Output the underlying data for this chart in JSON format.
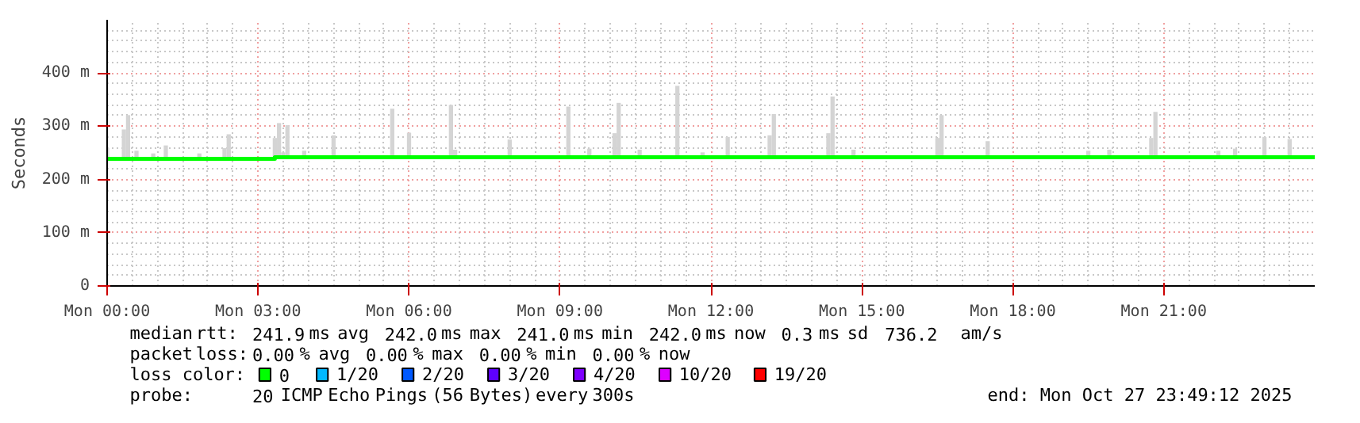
{
  "chart_data": {
    "type": "step",
    "ylabel": "Seconds",
    "legend_title": "loss color:",
    "legend": "bottom",
    "grid": true,
    "xlim": [
      "2025-10-27T00:00",
      "2025-10-28T00:00"
    ],
    "ylim": [
      0,
      500
    ],
    "xticks": [
      {
        "value": "2025-10-27T00:00",
        "label": "Mon 00:00"
      },
      {
        "value": "2025-10-27T03:00",
        "label": "Mon 03:00"
      },
      {
        "value": "2025-10-27T06:00",
        "label": "Mon 06:00"
      },
      {
        "value": "2025-10-27T09:00",
        "label": "Mon 09:00"
      },
      {
        "value": "2025-10-27T12:00",
        "label": "Mon 12:00"
      },
      {
        "value": "2025-10-27T15:00",
        "label": "Mon 15:00"
      },
      {
        "value": "2025-10-27T18:00",
        "label": "Mon 18:00"
      },
      {
        "value": "2025-10-27T21:00",
        "label": "Mon 21:00"
      }
    ],
    "yticks": [
      0,
      {
        "value": 100,
        "label": "100 m"
      },
      {
        "value": 200,
        "label": "200 m"
      },
      {
        "value": 300,
        "label": "300 m"
      },
      {
        "value": 400,
        "label": "400 m"
      }
    ],
    "series": [
      {
        "type": "bar",
        "color": "#d4d4d4",
        "x": [
          "2025-10-27T00:00",
          "2025-10-27T00:20",
          "2025-10-27T00:25",
          "2025-10-27T00:35",
          "2025-10-27T00:55",
          "2025-10-27T01:10",
          "2025-10-27T01:50",
          "2025-10-27T02:20",
          "2025-10-27T02:25",
          "2025-10-27T03:20",
          "2025-10-27T03:25",
          "2025-10-27T03:30",
          "2025-10-27T03:35",
          "2025-10-27T03:55",
          "2025-10-27T04:30",
          "2025-10-27T05:40",
          "2025-10-27T06:00",
          "2025-10-27T06:50",
          "2025-10-27T06:55",
          "2025-10-27T08:00",
          "2025-10-27T09:10",
          "2025-10-27T09:35",
          "2025-10-27T10:05",
          "2025-10-27T10:10",
          "2025-10-27T10:35",
          "2025-10-27T11:20",
          "2025-10-27T11:50",
          "2025-10-27T12:20",
          "2025-10-27T13:10",
          "2025-10-27T13:15",
          "2025-10-27T14:20",
          "2025-10-27T14:25",
          "2025-10-27T14:50",
          "2025-10-27T16:30",
          "2025-10-27T16:35",
          "2025-10-27T17:30",
          "2025-10-27T19:30",
          "2025-10-27T19:55",
          "2025-10-27T20:45",
          "2025-10-27T20:50",
          "2025-10-27T22:05",
          "2025-10-27T22:25",
          "2025-10-27T23:00",
          "2025-10-27T23:30"
        ],
        "base": [
          240,
          240,
          240,
          240,
          240,
          240,
          240,
          240,
          240,
          240,
          240,
          240,
          240,
          240,
          240,
          240,
          240,
          240,
          240,
          240,
          240,
          240,
          240,
          240,
          240,
          240,
          240,
          240,
          240,
          240,
          240,
          240,
          240,
          240,
          240,
          240,
          240,
          240,
          240,
          240,
          240,
          240,
          240,
          240
        ],
        "values": [
          19,
          54,
          81,
          14,
          9,
          24,
          9,
          19,
          45,
          38,
          66,
          11,
          62,
          14,
          43,
          93,
          48,
          100,
          16,
          35,
          97,
          18,
          47,
          104,
          16,
          136,
          11,
          40,
          43,
          83,
          47,
          116,
          16,
          38,
          81,
          32,
          14,
          16,
          38,
          87,
          14,
          18,
          40,
          36
        ]
      },
      {
        "name": "0",
        "color": "#00ff00",
        "x": [
          "2025-10-27T00:00",
          "2025-10-27T03:20",
          "2025-10-28T00:00"
        ],
        "values": [
          239,
          242,
          242
        ]
      },
      {
        "name": "1/20",
        "color": "#00b8ff"
      },
      {
        "name": "2/20",
        "color": "#0059ff"
      },
      {
        "name": "3/20",
        "color": "#5e00ff"
      },
      {
        "name": "4/20",
        "color": "#7e00ff"
      },
      {
        "name": "10/20",
        "color": "#dd00ff"
      },
      {
        "name": "19/20",
        "color": "#ff0000"
      }
    ],
    "annotations": [
      "median rtt:  241.9 ms avg  242.0 ms max  241.0 ms min  242.0 ms now  0.3 ms sd  736.2   am/s",
      "packet loss: 0.00 % avg  0.00 % max  0.00 % min  0.00 % now",
      "probe:       20 ICMP Echo Pings (56 Bytes) every 300s",
      "end: Mon Oct 27 23:49:12 2025"
    ]
  }
}
